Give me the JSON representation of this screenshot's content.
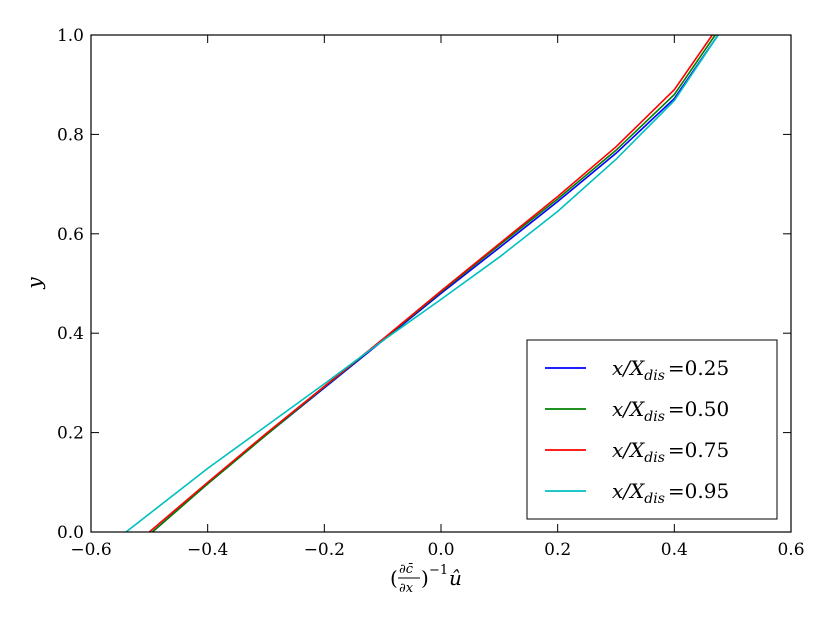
{
  "chart_data": {
    "type": "line",
    "xlabel_parts": [
      "(",
      "∂c̄",
      "∂x",
      ")",
      "−1",
      "û"
    ],
    "ylabel": "y",
    "xlim": [
      -0.6,
      0.6
    ],
    "ylim": [
      0.0,
      1.0
    ],
    "xticks": [
      -0.6,
      -0.4,
      -0.2,
      0.0,
      0.2,
      0.4,
      0.6
    ],
    "xtick_labels": [
      "−0.6",
      "−0.4",
      "−0.2",
      "0.0",
      "0.2",
      "0.4",
      "0.6"
    ],
    "yticks": [
      0.0,
      0.2,
      0.4,
      0.6,
      0.8,
      1.0
    ],
    "ytick_labels": [
      "0.0",
      "0.2",
      "0.4",
      "0.6",
      "0.8",
      "1.0"
    ],
    "grid": false,
    "legend_position": "bottom-right",
    "series": [
      {
        "name": "x/X_dis =0.25",
        "legend_var": "x/X",
        "legend_sub": "dis",
        "legend_value": "=0.25",
        "color": "#0000ff",
        "x": [
          -0.495,
          -0.4,
          -0.3,
          -0.2,
          -0.1,
          0.0,
          0.1,
          0.2,
          0.3,
          0.4,
          0.475
        ],
        "y": [
          0.0,
          0.097,
          0.195,
          0.29,
          0.385,
          0.48,
          0.572,
          0.665,
          0.762,
          0.872,
          1.0
        ]
      },
      {
        "name": "x/X_dis =0.50",
        "legend_var": "x/X",
        "legend_sub": "dis",
        "legend_value": "=0.50",
        "color": "#008000",
        "x": [
          -0.495,
          -0.4,
          -0.3,
          -0.2,
          -0.1,
          0.0,
          0.1,
          0.2,
          0.3,
          0.4,
          0.47
        ],
        "y": [
          0.0,
          0.097,
          0.195,
          0.292,
          0.387,
          0.483,
          0.577,
          0.67,
          0.768,
          0.88,
          1.0
        ]
      },
      {
        "name": "x/X_dis =0.75",
        "legend_var": "x/X",
        "legend_sub": "dis",
        "legend_value": "=0.75",
        "color": "#ff0000",
        "x": [
          -0.5,
          -0.4,
          -0.3,
          -0.2,
          -0.1,
          0.0,
          0.1,
          0.2,
          0.3,
          0.4,
          0.465
        ],
        "y": [
          0.0,
          0.1,
          0.198,
          0.293,
          0.388,
          0.485,
          0.58,
          0.675,
          0.775,
          0.89,
          1.0
        ]
      },
      {
        "name": "x/X_dis =0.95",
        "legend_var": "x/X",
        "legend_sub": "dis",
        "legend_value": "=0.95",
        "color": "#00bfbf",
        "x": [
          -0.54,
          -0.4,
          -0.3,
          -0.2,
          -0.1,
          0.0,
          0.1,
          0.2,
          0.3,
          0.4,
          0.475
        ],
        "y": [
          0.0,
          0.128,
          0.213,
          0.298,
          0.385,
          0.468,
          0.553,
          0.645,
          0.75,
          0.868,
          1.0
        ]
      }
    ]
  }
}
